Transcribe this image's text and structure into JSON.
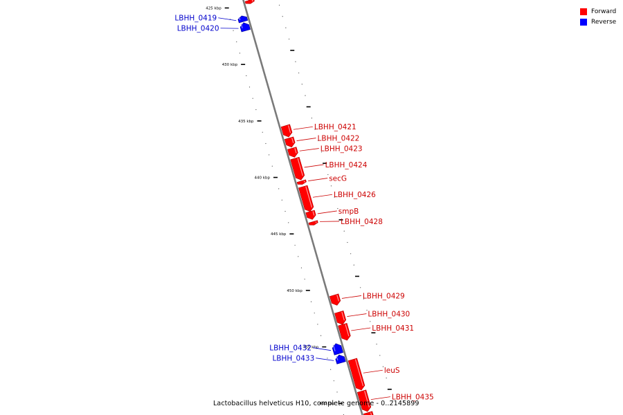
{
  "legend": {
    "forward_label": "Forward",
    "reverse_label": "Reverse",
    "forward_color": "#ff0000",
    "reverse_color": "#0000ff"
  },
  "caption": "Lactobacillus helveticus H10, complete genome - 0..2145899",
  "axis": {
    "unit": "kbp",
    "start_kbp": 424.3,
    "end_kbp": 462,
    "major_ticks_kbp": [
      425,
      430,
      435,
      440,
      445,
      450,
      455,
      460
    ],
    "minor_step_kbp": 1
  },
  "label_colors": {
    "forward": "#cc0000",
    "reverse": "#0000cc"
  },
  "genes": [
    {
      "name": "",
      "strand": "forward",
      "start_kbp": 424.3,
      "end_kbp": 424.9
    },
    {
      "name": "",
      "strand": "forward",
      "start_kbp": 424.9,
      "end_kbp": 425.2
    },
    {
      "name": "LBHH_0419",
      "strand": "reverse",
      "start_kbp": 426.0,
      "end_kbp": 426.5
    },
    {
      "name": "LBHH_0420",
      "strand": "reverse",
      "start_kbp": 426.6,
      "end_kbp": 427.3
    },
    {
      "name": "LBHH_0421",
      "strand": "forward",
      "start_kbp": 436.0,
      "end_kbp": 437.0
    },
    {
      "name": "LBHH_0422",
      "strand": "forward",
      "start_kbp": 437.1,
      "end_kbp": 437.9
    },
    {
      "name": "LBHH_0423",
      "strand": "forward",
      "start_kbp": 438.0,
      "end_kbp": 438.8
    },
    {
      "name": "LBHH_0424",
      "strand": "forward",
      "start_kbp": 438.9,
      "end_kbp": 440.8
    },
    {
      "name": "secG",
      "strand": "forward",
      "start_kbp": 440.9,
      "end_kbp": 441.2
    },
    {
      "name": "LBHH_0426",
      "strand": "forward",
      "start_kbp": 441.4,
      "end_kbp": 443.6
    },
    {
      "name": "smpB",
      "strand": "forward",
      "start_kbp": 443.6,
      "end_kbp": 444.3
    },
    {
      "name": "LBHH_0428",
      "strand": "forward",
      "start_kbp": 444.5,
      "end_kbp": 444.8
    },
    {
      "name": "LBHH_0429",
      "strand": "forward",
      "start_kbp": 451.0,
      "end_kbp": 451.9
    },
    {
      "name": "LBHH_0430",
      "strand": "forward",
      "start_kbp": 452.5,
      "end_kbp": 453.6
    },
    {
      "name": "LBHH_0431",
      "strand": "forward",
      "start_kbp": 453.6,
      "end_kbp": 455.0
    },
    {
      "name": "LBHH_0432",
      "strand": "reverse",
      "start_kbp": 455.0,
      "end_kbp": 455.9
    },
    {
      "name": "LBHH_0433",
      "strand": "reverse",
      "start_kbp": 456.0,
      "end_kbp": 456.7
    },
    {
      "name": "leuS",
      "strand": "forward",
      "start_kbp": 456.7,
      "end_kbp": 459.4
    },
    {
      "name": "LBHH_0435",
      "strand": "forward",
      "start_kbp": 459.5,
      "end_kbp": 461.3
    },
    {
      "name": "",
      "strand": "forward",
      "start_kbp": 461.4,
      "end_kbp": 462.0
    }
  ]
}
